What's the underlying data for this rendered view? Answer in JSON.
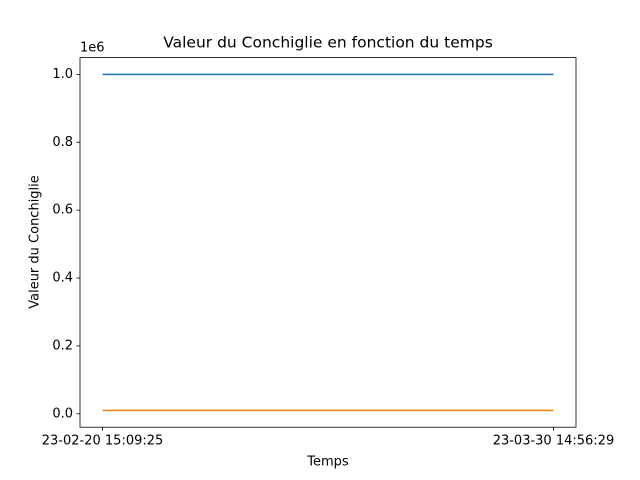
{
  "chart_data": {
    "type": "line",
    "title": "Valeur du Conchiglie en fonction du temps",
    "x_label": "Temps",
    "y_label": "Valeur du Conchiglie",
    "y_offset_text": "1e6",
    "x": [
      "23-02-20 15:09:25",
      "23-03-30 14:56:29"
    ],
    "series": [
      {
        "color": "#1f77b4",
        "values": [
          1000000,
          1000000
        ]
      },
      {
        "color": "#ff7f0e",
        "values": [
          10000,
          10000
        ]
      }
    ],
    "ylim": [
      -39500,
      1049500
    ],
    "yticks": [
      {
        "value": 0,
        "label": "0.0"
      },
      {
        "value": 200000,
        "label": "0.2"
      },
      {
        "value": 400000,
        "label": "0.4"
      },
      {
        "value": 600000,
        "label": "0.6"
      },
      {
        "value": 800000,
        "label": "0.8"
      },
      {
        "value": 1000000,
        "label": "1.0"
      }
    ]
  }
}
